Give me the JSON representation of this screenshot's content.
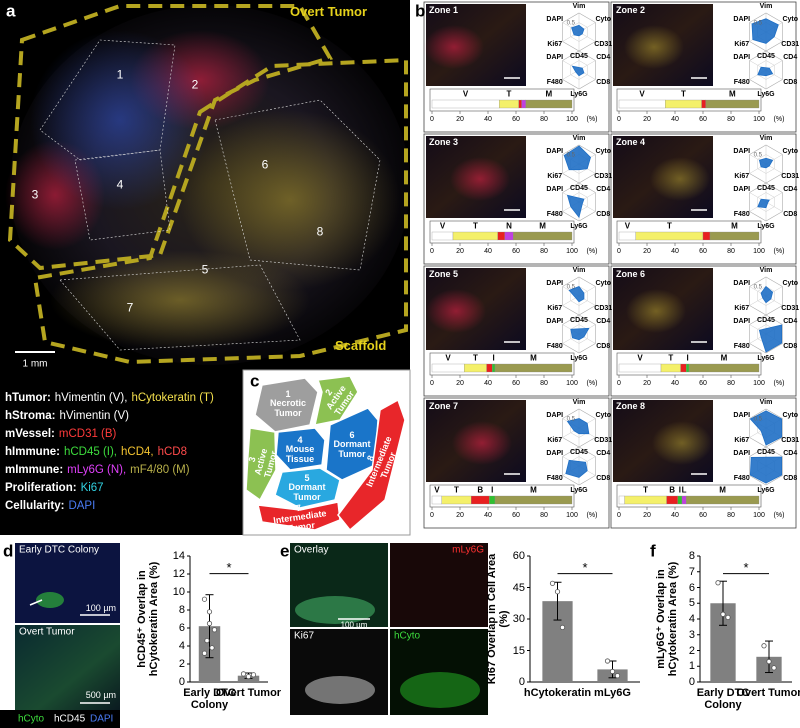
{
  "panel_a": {
    "label": "a",
    "overt_label": "Overt Tumor",
    "scaffold_label": "Scaffold",
    "zones": [
      "1",
      "2",
      "3",
      "4",
      "5",
      "6",
      "7",
      "8"
    ],
    "scale_bar": "1 mm",
    "legend": [
      {
        "key": "hTumor:",
        "parts": [
          {
            "text": "hVimentin (V),",
            "color": "#ffffff"
          },
          {
            "text": "hCytokeratin (T)",
            "color": "#f4e04d"
          }
        ]
      },
      {
        "key": "hStroma:",
        "parts": [
          {
            "text": "hVimentin (V)",
            "color": "#ffffff"
          }
        ]
      },
      {
        "key": "mVessel:",
        "parts": [
          {
            "text": "mCD31 (B)",
            "color": "#ff3b3b"
          }
        ]
      },
      {
        "key": "hImmune:",
        "parts": [
          {
            "text": "hCD45 (I),",
            "color": "#3ddc3d"
          },
          {
            "text": "hCD4,",
            "color": "#f4c430"
          },
          {
            "text": "hCD8",
            "color": "#ff4b4b"
          }
        ]
      },
      {
        "key": "mImmune:",
        "parts": [
          {
            "text": "mLy6G (N),",
            "color": "#e040fb"
          },
          {
            "text": "mF4/80 (M)",
            "color": "#b8b04a"
          }
        ]
      },
      {
        "key": "Proliferation:",
        "parts": [
          {
            "text": "Ki67",
            "color": "#31d0e0"
          }
        ]
      },
      {
        "key": "Cellularity:",
        "parts": [
          {
            "text": "DAPI",
            "color": "#4a7cf5"
          }
        ]
      }
    ]
  },
  "panel_b": {
    "label": "b",
    "radar_axes_1": [
      "Vim",
      "Cyto",
      "CD31",
      "CD45",
      "Ki67",
      "DAPI"
    ],
    "radar_axes_2": [
      "CD4",
      "CD8",
      "Ly6G",
      "F480",
      "DAPI"
    ],
    "radar_lim": [
      0,
      1
    ],
    "radar_ticks": [
      0.5
    ],
    "radar_color": "#1f6fc5",
    "bar_xlim": [
      0,
      100
    ],
    "bar_xticks": [
      0,
      20,
      40,
      60,
      80,
      100
    ],
    "bar_unit": "(%)",
    "zones": [
      {
        "title": "Zone 1",
        "radar_1": [
          0.35,
          0.3,
          0.2,
          0.2,
          0.3,
          0.45
        ],
        "radar_2": [
          0.2,
          0.3,
          0.3,
          0.2,
          0.4
        ],
        "bar": {
          "values": [
            48,
            14,
            2,
            3,
            33
          ],
          "colors": [
            "#ffffff",
            "#f4f06a",
            "#e82020",
            "#c040e0",
            "#9a9a50"
          ],
          "labels": [
            "V",
            "T",
            null,
            null,
            "M"
          ]
        }
      },
      {
        "title": "Zone 2",
        "radar_1": [
          0.7,
          0.75,
          0.5,
          0.6,
          0.8,
          0.85
        ],
        "radar_2": [
          0.2,
          0.4,
          0.3,
          0.5,
          0.3
        ],
        "bar": {
          "values": [
            33,
            26,
            3,
            38
          ],
          "colors": [
            "#ffffff",
            "#f4f06a",
            "#e82020",
            "#9a9a50"
          ],
          "labels": [
            "V",
            "T",
            null,
            "M"
          ]
        }
      },
      {
        "title": "Zone 3",
        "radar_1": [
          0.95,
          0.7,
          0.5,
          0.3,
          0.6,
          0.9
        ],
        "radar_2": [
          0.3,
          0.2,
          0.8,
          0.5,
          0.7
        ],
        "bar": {
          "values": [
            15,
            32,
            5,
            6,
            42
          ],
          "colors": [
            "#ffffff",
            "#f4f06a",
            "#e82020",
            "#c040e0",
            "#9a9a50"
          ],
          "labels": [
            "V",
            "T",
            null,
            "N",
            "M"
          ]
        }
      },
      {
        "title": "Zone 4",
        "radar_1": [
          0.3,
          0.4,
          0.2,
          0.2,
          0.3,
          0.4
        ],
        "radar_2": [
          0.2,
          0.1,
          0.3,
          0.5,
          0.3
        ],
        "bar": {
          "values": [
            12,
            48,
            5,
            35
          ],
          "colors": [
            "#ffffff",
            "#f4f06a",
            "#e82020",
            "#9a9a50"
          ],
          "labels": [
            "V",
            "T",
            null,
            "M"
          ]
        }
      },
      {
        "title": "Zone 5",
        "radar_1": [
          0.5,
          0.3,
          0.3,
          0.3,
          0.2,
          0.6
        ],
        "radar_2": [
          0.6,
          0.3,
          0.3,
          0.4,
          0.5
        ],
        "bar": {
          "values": [
            23,
            16,
            4,
            2,
            55
          ],
          "colors": [
            "#ffffff",
            "#f4f06a",
            "#e82020",
            "#30c030",
            "#9a9a50"
          ],
          "labels": [
            "V",
            "T",
            null,
            "I",
            "M"
          ]
        }
      },
      {
        "title": "Zone 6",
        "radar_1": [
          0.5,
          0.4,
          0.3,
          0.35,
          0.2,
          0.3
        ],
        "radar_2": [
          0.95,
          0.95,
          0.95,
          0.3,
          0.4
        ],
        "bar": {
          "values": [
            30,
            14,
            4,
            2,
            50
          ],
          "colors": [
            "#ffffff",
            "#f4f06a",
            "#e82020",
            "#30c030",
            "#9a9a50"
          ],
          "labels": [
            "V",
            "T",
            null,
            "I",
            "M"
          ]
        }
      },
      {
        "title": "Zone 7",
        "radar_1": [
          0.5,
          0.5,
          0.6,
          0.3,
          0.3,
          0.7
        ],
        "radar_2": [
          0.4,
          0.5,
          0.6,
          0.8,
          0.6
        ],
        "bar": {
          "values": [
            7,
            21,
            13,
            4,
            55
          ],
          "colors": [
            "#ffffff",
            "#f4f06a",
            "#e82020",
            "#30c030",
            "#9a9a50"
          ],
          "labels": [
            "V",
            "T",
            "B",
            "I",
            "M"
          ]
        }
      },
      {
        "title": "Zone 8",
        "radar_1": [
          0.9,
          0.95,
          0.95,
          0.9,
          0.3,
          0.95
        ],
        "radar_2": [
          0.95,
          0.95,
          0.9,
          0.95,
          0.9
        ],
        "bar": {
          "values": [
            4,
            30,
            8,
            3,
            3,
            52
          ],
          "colors": [
            "#ffffff",
            "#f4f06a",
            "#e82020",
            "#30c030",
            "#c040e0",
            "#9a9a50"
          ],
          "labels": [
            null,
            "T",
            "B",
            "I",
            "L",
            "M"
          ]
        }
      }
    ]
  },
  "panel_c": {
    "label": "c",
    "regions": [
      {
        "number": "1",
        "name": "Necrotic Tumor"
      },
      {
        "number": "2",
        "name": "Active Tumor"
      },
      {
        "number": "3",
        "name": "Active Tumor"
      },
      {
        "number": "4",
        "name": "Mouse Tissue"
      },
      {
        "number": "5",
        "name": "Dormant Tumor"
      },
      {
        "number": "6",
        "name": "Dormant Tumor"
      },
      {
        "number": "7",
        "name": "Intermediate Tumor"
      },
      {
        "number": "8",
        "name": "Intermediate Tumor"
      }
    ]
  },
  "panel_d": {
    "label": "d",
    "top_label": "Early DTC Colony",
    "top_scale": "100 µm",
    "bottom_label": "Overt Tumor",
    "bottom_scale": "500 µm",
    "legend": [
      {
        "text": "hCyto",
        "color": "#3ddc3d"
      },
      {
        "text": "hCD45",
        "color": "#ffffff"
      },
      {
        "text": "DAPI",
        "color": "#4a7cf5"
      }
    ]
  },
  "panel_e": {
    "label": "e",
    "images": [
      {
        "text": "Overlay",
        "color": "#ffffff"
      },
      {
        "text": "mLy6G",
        "color": "#ff3030"
      },
      {
        "text": "Ki67",
        "color": "#ffffff"
      },
      {
        "text": "hCyto",
        "color": "#3ddc3d"
      }
    ],
    "scale": "100 µm"
  },
  "panel_f": {
    "label": "f"
  },
  "chart_data": [
    {
      "type": "bar",
      "ylabel": "hCD45⁺ Overlap in hCytokeratin Area (%)",
      "categories": [
        "Early DTC Colony",
        "Overt Tumor"
      ],
      "values": [
        6.2,
        0.7
      ],
      "errors": [
        3.5,
        0.3
      ],
      "points": [
        [
          9.2,
          6.5,
          5.8,
          4.6,
          3.8,
          3.2,
          7.8
        ],
        [
          0.9,
          0.6,
          0.8
        ]
      ],
      "ylim": [
        0,
        14
      ],
      "yticks": [
        0,
        2,
        4,
        6,
        8,
        10,
        12,
        14
      ],
      "color": "#808080",
      "significance": "*"
    },
    {
      "type": "bar",
      "ylabel": "Ki67 Overlap in Cell Area (%)",
      "categories": [
        "hCytokeratin",
        "mLy6G"
      ],
      "values": [
        38.5,
        6
      ],
      "errors": [
        9,
        4
      ],
      "points": [
        [
          47,
          43,
          26
        ],
        [
          10,
          5,
          3
        ]
      ],
      "ylim": [
        0,
        60
      ],
      "yticks": [
        0,
        15,
        30,
        45,
        60
      ],
      "color": "#808080",
      "significance": "*"
    },
    {
      "type": "bar",
      "ylabel": "mLy6G⁺ Overlap in hCytokeratin Area (%)",
      "categories": [
        "Early DTC Colony",
        "Overt Tumor"
      ],
      "values": [
        5,
        1.6
      ],
      "errors": [
        1.4,
        1
      ],
      "points": [
        [
          6.3,
          4.3,
          4.1
        ],
        [
          2.3,
          1.3,
          0.9
        ]
      ],
      "ylim": [
        0,
        8
      ],
      "yticks": [
        0,
        1,
        2,
        3,
        4,
        5,
        6,
        7,
        8
      ],
      "color": "#808080",
      "significance": "*"
    }
  ]
}
